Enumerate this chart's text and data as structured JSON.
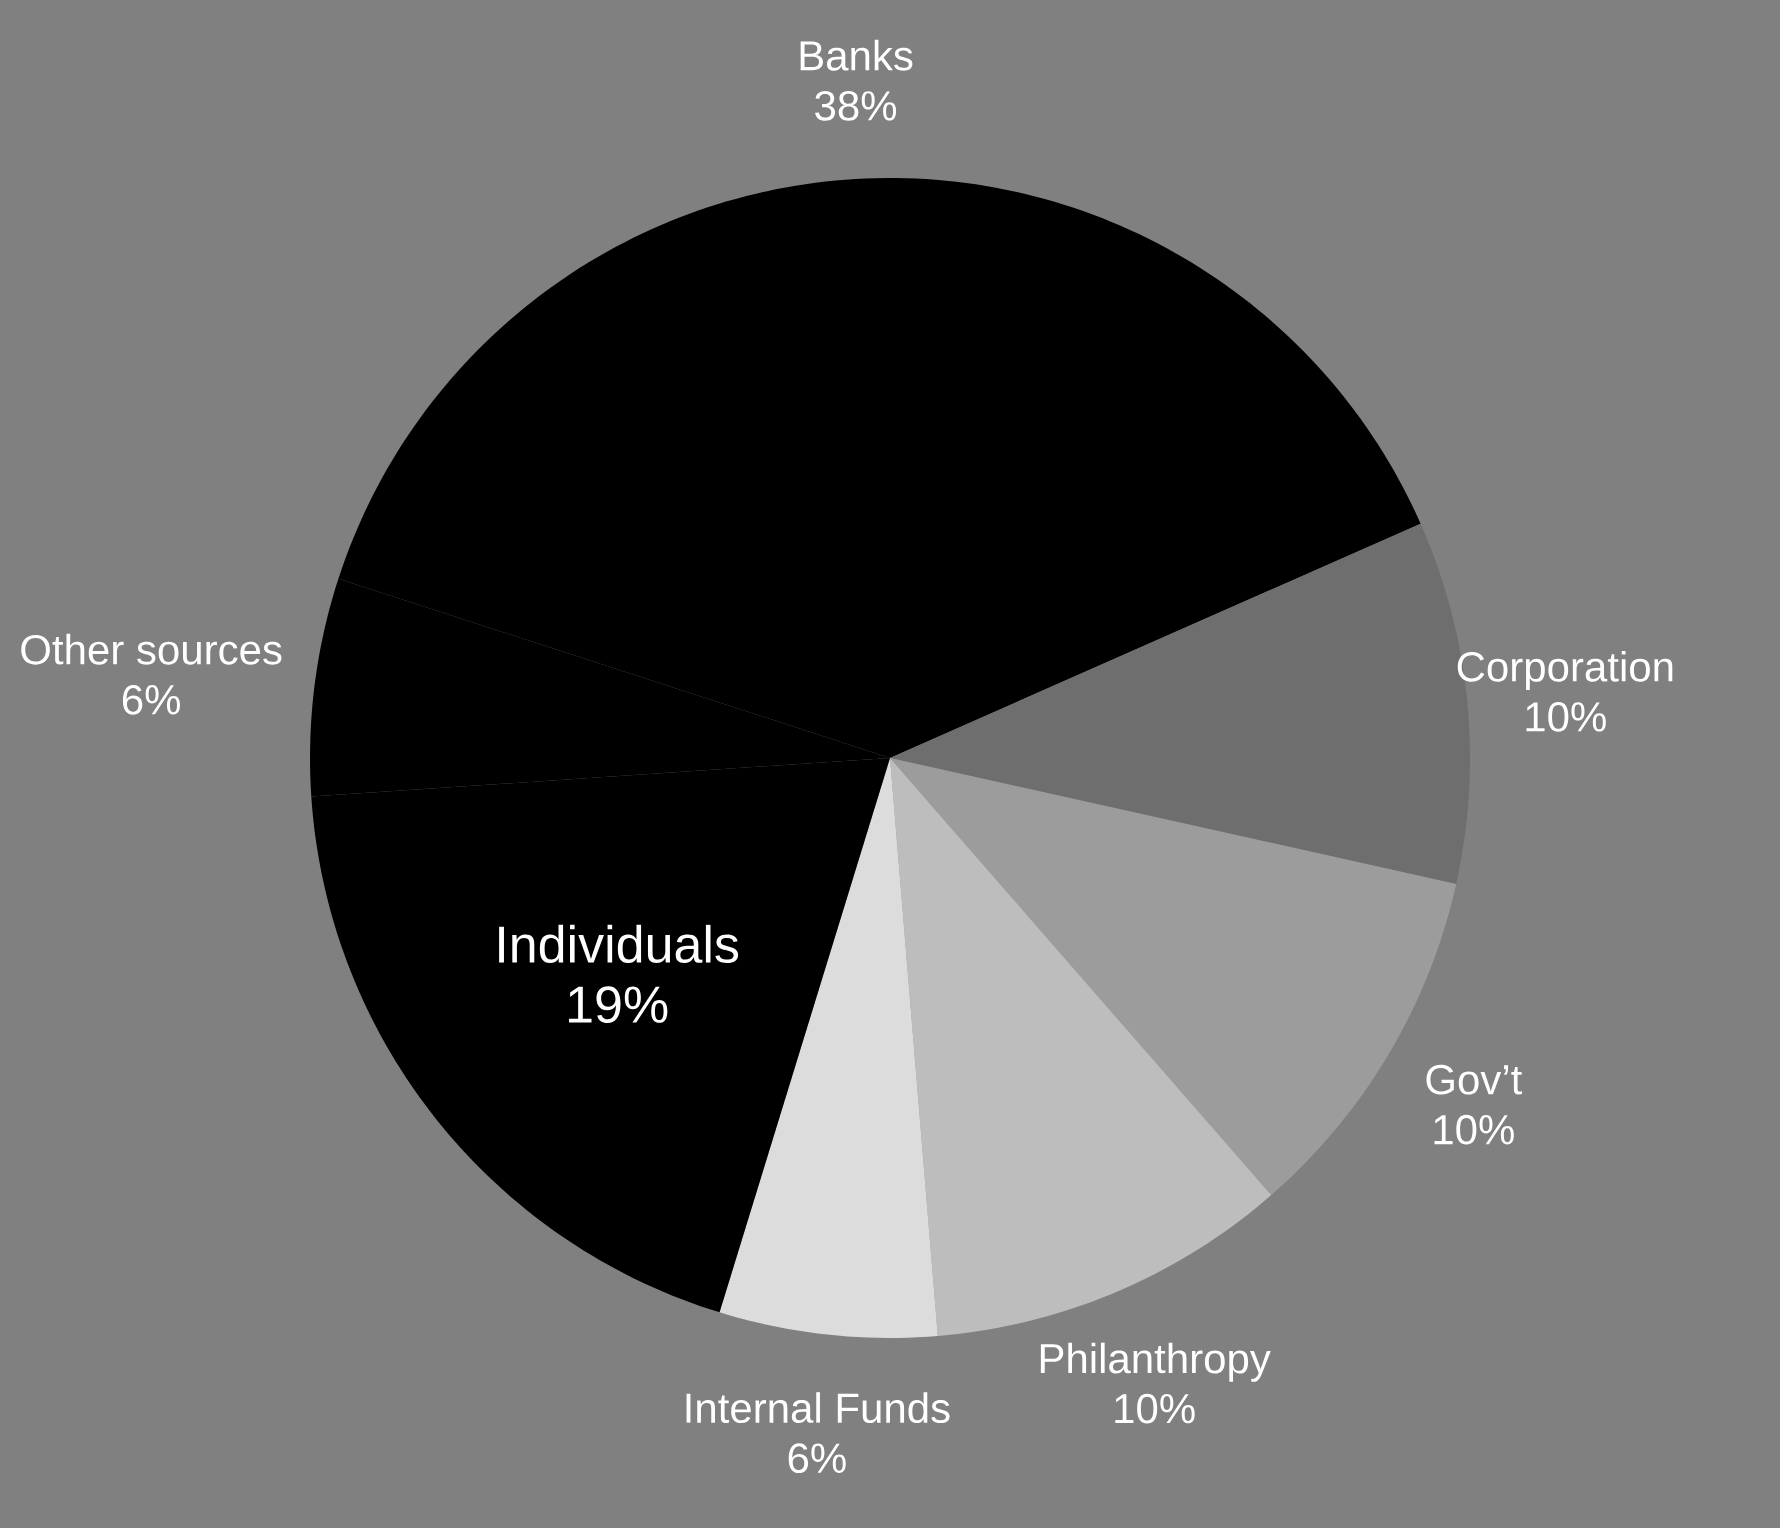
{
  "chart_data": {
    "type": "pie",
    "categories": [
      "Banks",
      "Corporation",
      "Gov’t",
      "Philanthropy",
      "Internal Funds",
      "Individuals",
      "Other sources"
    ],
    "values": [
      38,
      10,
      10,
      10,
      6,
      19,
      6
    ],
    "value_labels": [
      "38%",
      "10%",
      "10%",
      "10%",
      "6%",
      "19%",
      "6%"
    ],
    "colors": [
      "#000000",
      "#6e6e6e",
      "#9c9c9c",
      "#bdbdbd",
      "#dcdcdc",
      "#000000",
      "#000000"
    ],
    "legend": false
  }
}
